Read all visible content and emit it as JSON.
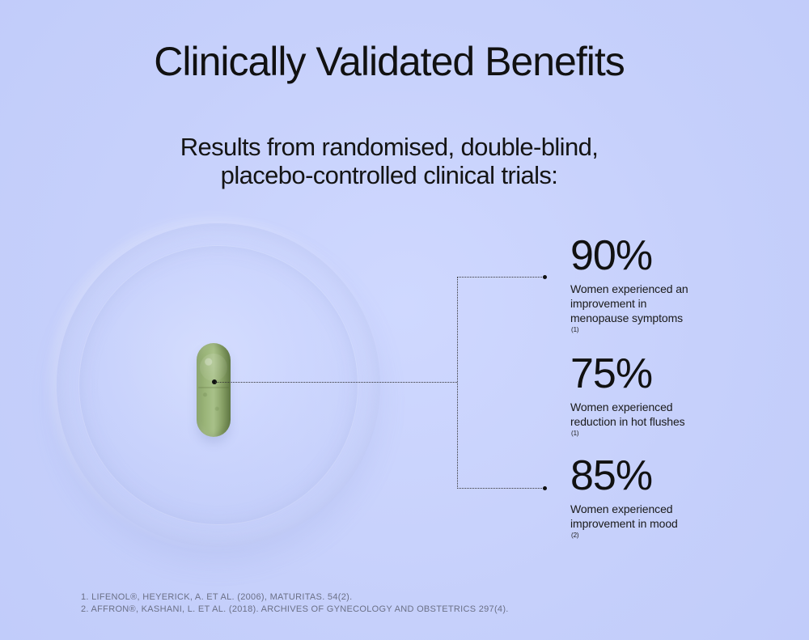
{
  "header": {
    "title": "Clinically Validated Benefits",
    "subtitle_line_1": "Results from randomised, double-blind,",
    "subtitle_line_2": "placebo-controlled clinical trials:"
  },
  "visual": {
    "background_color": "#c7d1fb",
    "capsule_color": "#9db57d",
    "line_color": "#333333"
  },
  "stats": [
    {
      "value": "90%",
      "line_1": "Women experienced an",
      "line_2": "improvement in",
      "line_3": "menopause symptoms",
      "superscript": "(1)"
    },
    {
      "value": "75%",
      "line_1": "Women experienced",
      "line_2": "reduction in hot flushes",
      "superscript": "(1)"
    },
    {
      "value": "85%",
      "line_1": "Women experienced",
      "line_2": "improvement in mood",
      "superscript": "(2)"
    }
  ],
  "references": {
    "ref_1": "1. LIFENOL®, HEYERICK, A. ET AL. (2006), MATURITAS. 54(2).",
    "ref_2": "2. AFFRON®, KASHANI, L. ET AL. (2018). ARCHIVES OF GYNECOLOGY AND OBSTETRICS 297(4)."
  }
}
